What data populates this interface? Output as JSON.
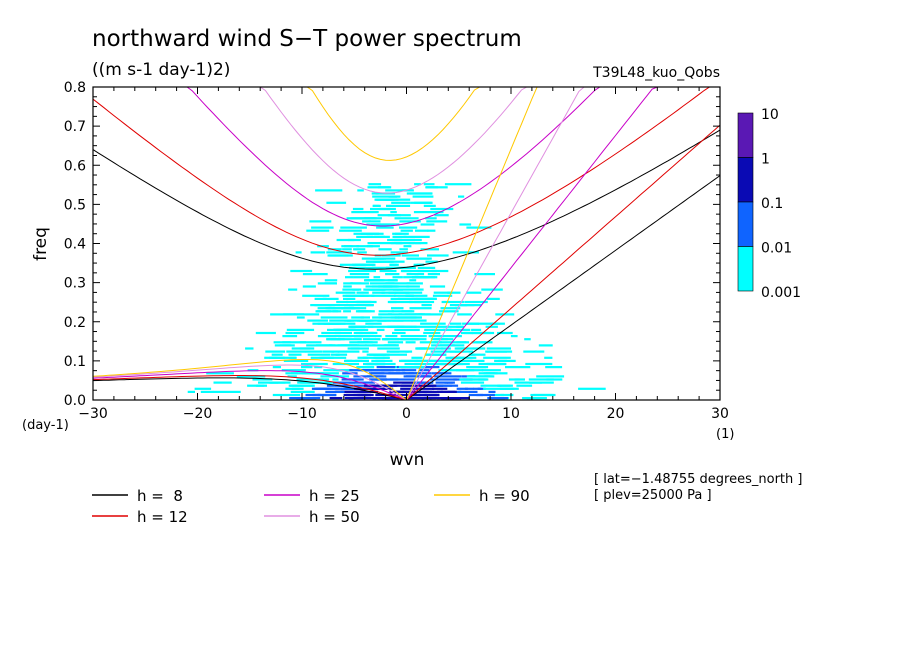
{
  "chart_data": {
    "type": "heatmap",
    "title": "northward wind S−T power spectrum",
    "units": "((m s-1 day-1)2)",
    "case": "T39L48_kuo_Qobs",
    "xlabel": "wvn",
    "ylabel": "freq",
    "x_unit": "(1)",
    "y_unit": "(day-1)",
    "xlim": [
      -30,
      30
    ],
    "ylim": [
      0,
      0.8
    ],
    "x_ticks": [
      "−30",
      "−20",
      "−10",
      "0",
      "10",
      "20",
      "30"
    ],
    "y_ticks": [
      "0.0",
      "0.1",
      "0.2",
      "0.3",
      "0.4",
      "0.5",
      "0.6",
      "0.7",
      "0.8"
    ],
    "colorbar": {
      "labels": [
        "10",
        "1",
        "0.1",
        "0.01",
        "0.001"
      ],
      "colors": [
        "#5a18b4",
        "#0a0ab4",
        "#0f64ff",
        "#00ffff"
      ]
    },
    "dispersion_curves": [
      {
        "label": "h =  8",
        "h": 8,
        "color": "#000000"
      },
      {
        "label": "h = 12",
        "h": 12,
        "color": "#e00000"
      },
      {
        "label": "h = 25",
        "h": 25,
        "color": "#c800c8"
      },
      {
        "label": "h = 50",
        "h": 50,
        "color": "#e090e0"
      },
      {
        "label": "h = 90",
        "h": 90,
        "color": "#ffc800"
      }
    ],
    "info": [
      "[ lat=−1.48755 degrees_north ]",
      "[ plev=25000 Pa ]"
    ]
  }
}
